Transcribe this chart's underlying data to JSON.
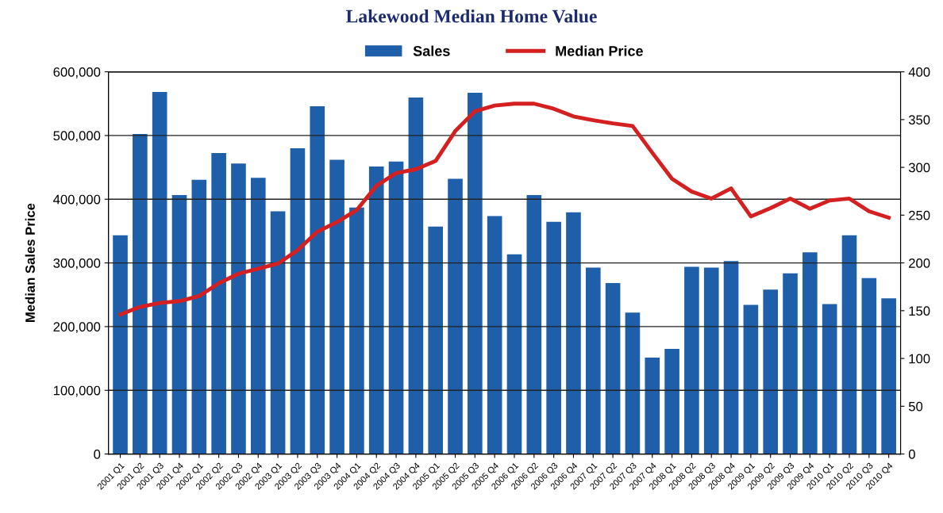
{
  "chart_data": {
    "type": "bar",
    "title": "Lakewood Median Home Value",
    "ylabel": "Median Sales Price",
    "categories": [
      "2001 Q1",
      "2001 Q2",
      "2001 Q3",
      "2001 Q4",
      "2002 Q1",
      "2002 Q2",
      "2002 Q3",
      "2002 Q4",
      "2003 Q1",
      "2003 Q2",
      "2003 Q3",
      "2003 Q4",
      "2004 Q1",
      "2004 Q2",
      "2004 Q3",
      "2004 Q4",
      "2005 Q1",
      "2005 Q2",
      "2005 Q3",
      "2005 Q4",
      "2006 Q1",
      "2006 Q2",
      "2006 Q3",
      "2006 Q4",
      "2007 Q1",
      "2007 Q2",
      "2007 Q3",
      "2007 Q4",
      "2008 Q1",
      "2008 Q2",
      "2008 Q3",
      "2008 Q4",
      "2009 Q1",
      "2009 Q2",
      "2009 Q3",
      "2009 Q4",
      "2010 Q1",
      "2010 Q2",
      "2010 Q3",
      "2010 Q4"
    ],
    "series": [
      {
        "name": "Sales",
        "axis": "y2",
        "color": "#1f5ea8",
        "values": [
          229,
          335,
          379,
          271,
          287,
          315,
          304,
          289,
          254,
          320,
          364,
          308,
          258,
          301,
          306,
          373,
          238,
          288,
          378,
          249,
          209,
          271,
          243,
          253,
          195,
          179,
          148,
          101,
          110,
          196,
          195,
          202,
          156,
          172,
          189,
          211,
          157,
          229,
          184,
          163
        ]
      },
      {
        "name": "Median Price",
        "type": "line",
        "color": "#d42020",
        "values": [
          219000,
          231000,
          237000,
          240000,
          248000,
          268000,
          283000,
          291000,
          299000,
          320000,
          349000,
          364000,
          383000,
          421000,
          441000,
          447000,
          460000,
          507000,
          538000,
          547000,
          550000,
          550000,
          542000,
          530000,
          524000,
          519000,
          515000,
          473000,
          432000,
          412000,
          401000,
          417000,
          373000,
          386000,
          401000,
          385000,
          398000,
          401000,
          381000,
          371000
        ]
      }
    ],
    "ylim": [
      0,
      600000
    ],
    "yticks": [
      {
        "value": 0,
        "label": "0"
      },
      {
        "value": 100000,
        "label": "100,000"
      },
      {
        "value": 200000,
        "label": "200,000"
      },
      {
        "value": 300000,
        "label": "300,000"
      },
      {
        "value": 400000,
        "label": "400,000"
      },
      {
        "value": 500000,
        "label": "500,000"
      },
      {
        "value": 600000,
        "label": "600,000"
      }
    ],
    "y2lim": [
      0,
      400
    ],
    "y2ticks": [
      0,
      50,
      100,
      150,
      200,
      250,
      300,
      350,
      400
    ],
    "grid": "y",
    "legend": "top",
    "marker": "none",
    "line_style": "solid"
  }
}
